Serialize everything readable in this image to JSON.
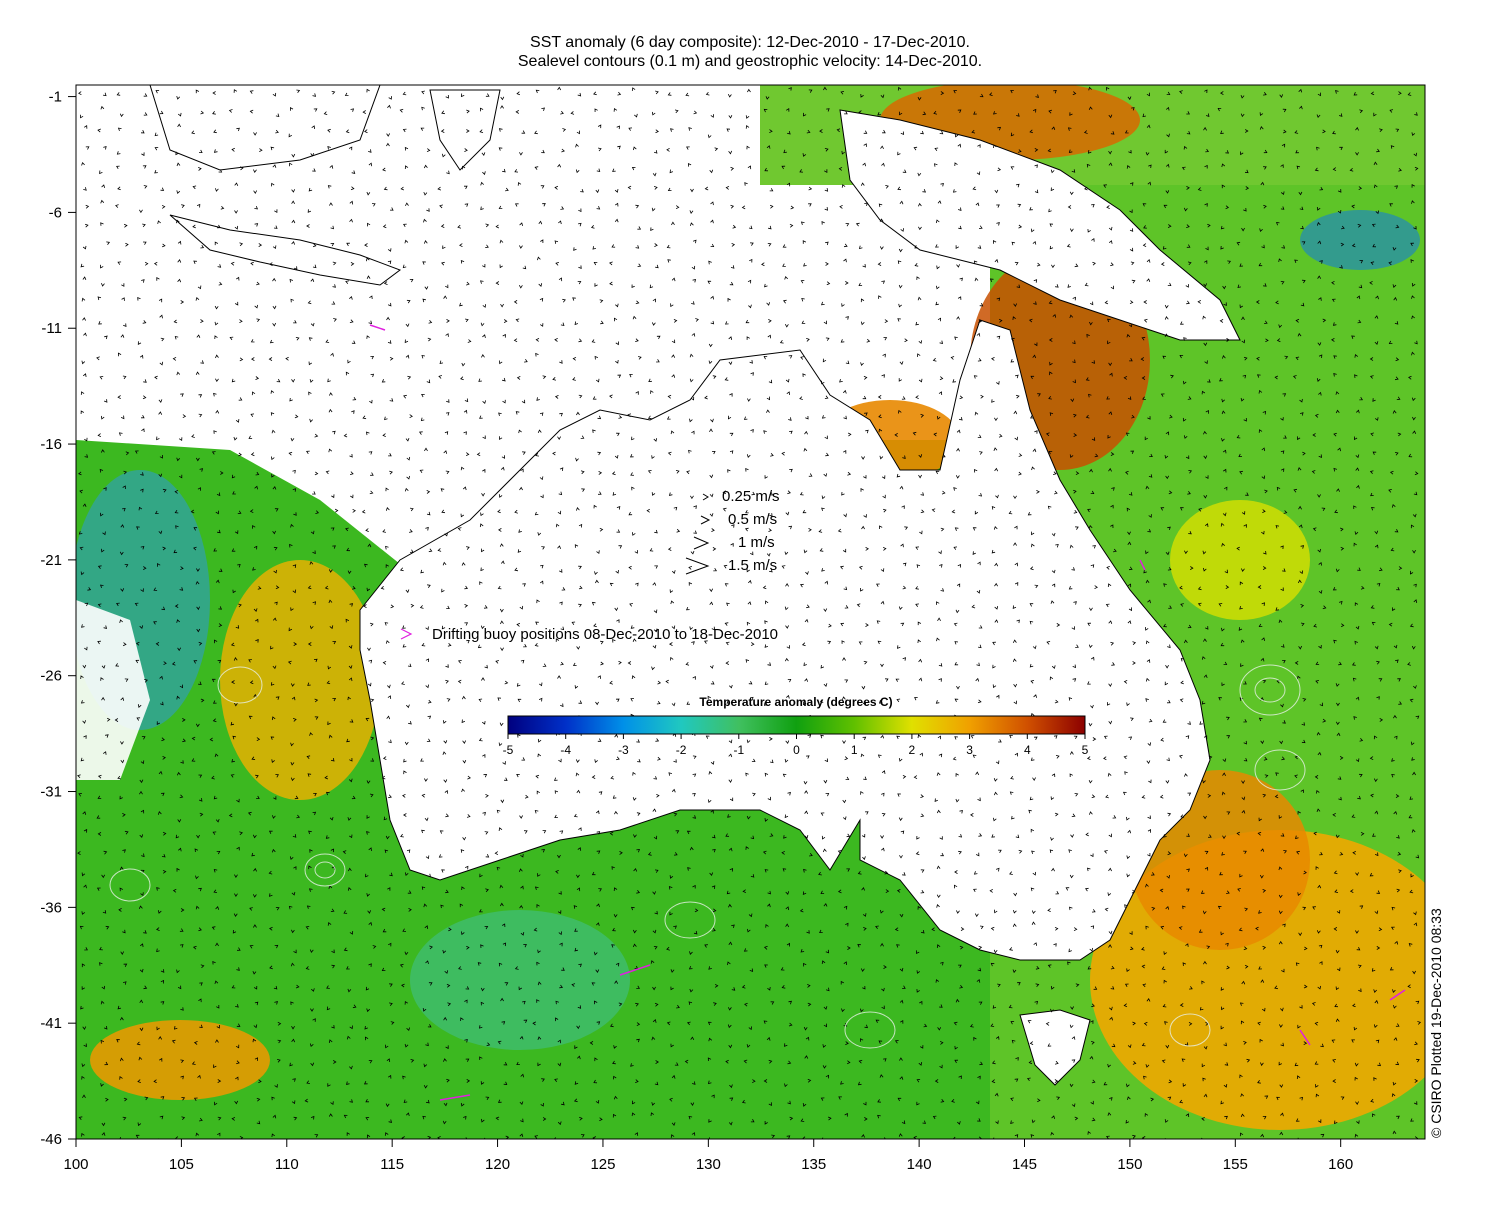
{
  "title": {
    "line1": "SST anomaly (6 day composite): 12-Dec-2010 - 17-Dec-2010.",
    "line2": "Sealevel contours (0.1 m) and geostrophic velocity: 14-Dec-2010."
  },
  "axes": {
    "x_ticks": [
      "100",
      "105",
      "110",
      "115",
      "120",
      "125",
      "130",
      "135",
      "140",
      "145",
      "150",
      "155",
      "160"
    ],
    "y_ticks": [
      "-1",
      "-6",
      "-11",
      "-16",
      "-21",
      "-26",
      "-31",
      "-36",
      "-41",
      "-46"
    ],
    "lon_range": [
      100,
      164
    ],
    "lat_range": [
      -46,
      -0.5
    ]
  },
  "velocity_legend": [
    "0.25 m/s",
    "0.5 m/s",
    "1 m/s",
    "1.5 m/s"
  ],
  "buoy_legend": "Drifting buoy positions 08-Dec-2010 to 18-Dec-2010",
  "colorbar": {
    "title": "Temperature anomaly (degrees C)",
    "ticks": [
      "-5",
      "-4",
      "-3",
      "-2",
      "-1",
      "0",
      "1",
      "2",
      "3",
      "4",
      "5"
    ],
    "range": [
      -5,
      5
    ],
    "colors": [
      "#00007f",
      "#0030c8",
      "#0090e8",
      "#20c8c0",
      "#40c060",
      "#10a010",
      "#60c000",
      "#e0e000",
      "#f0a000",
      "#d05000",
      "#8c0000"
    ]
  },
  "credit": "© CSIRO Plotted 19-Dec-2010 08:33",
  "colors": {
    "land": "#ffffff",
    "buoy": "#e020e0",
    "contour": "#e8f0e8",
    "arrow": "#000000"
  }
}
